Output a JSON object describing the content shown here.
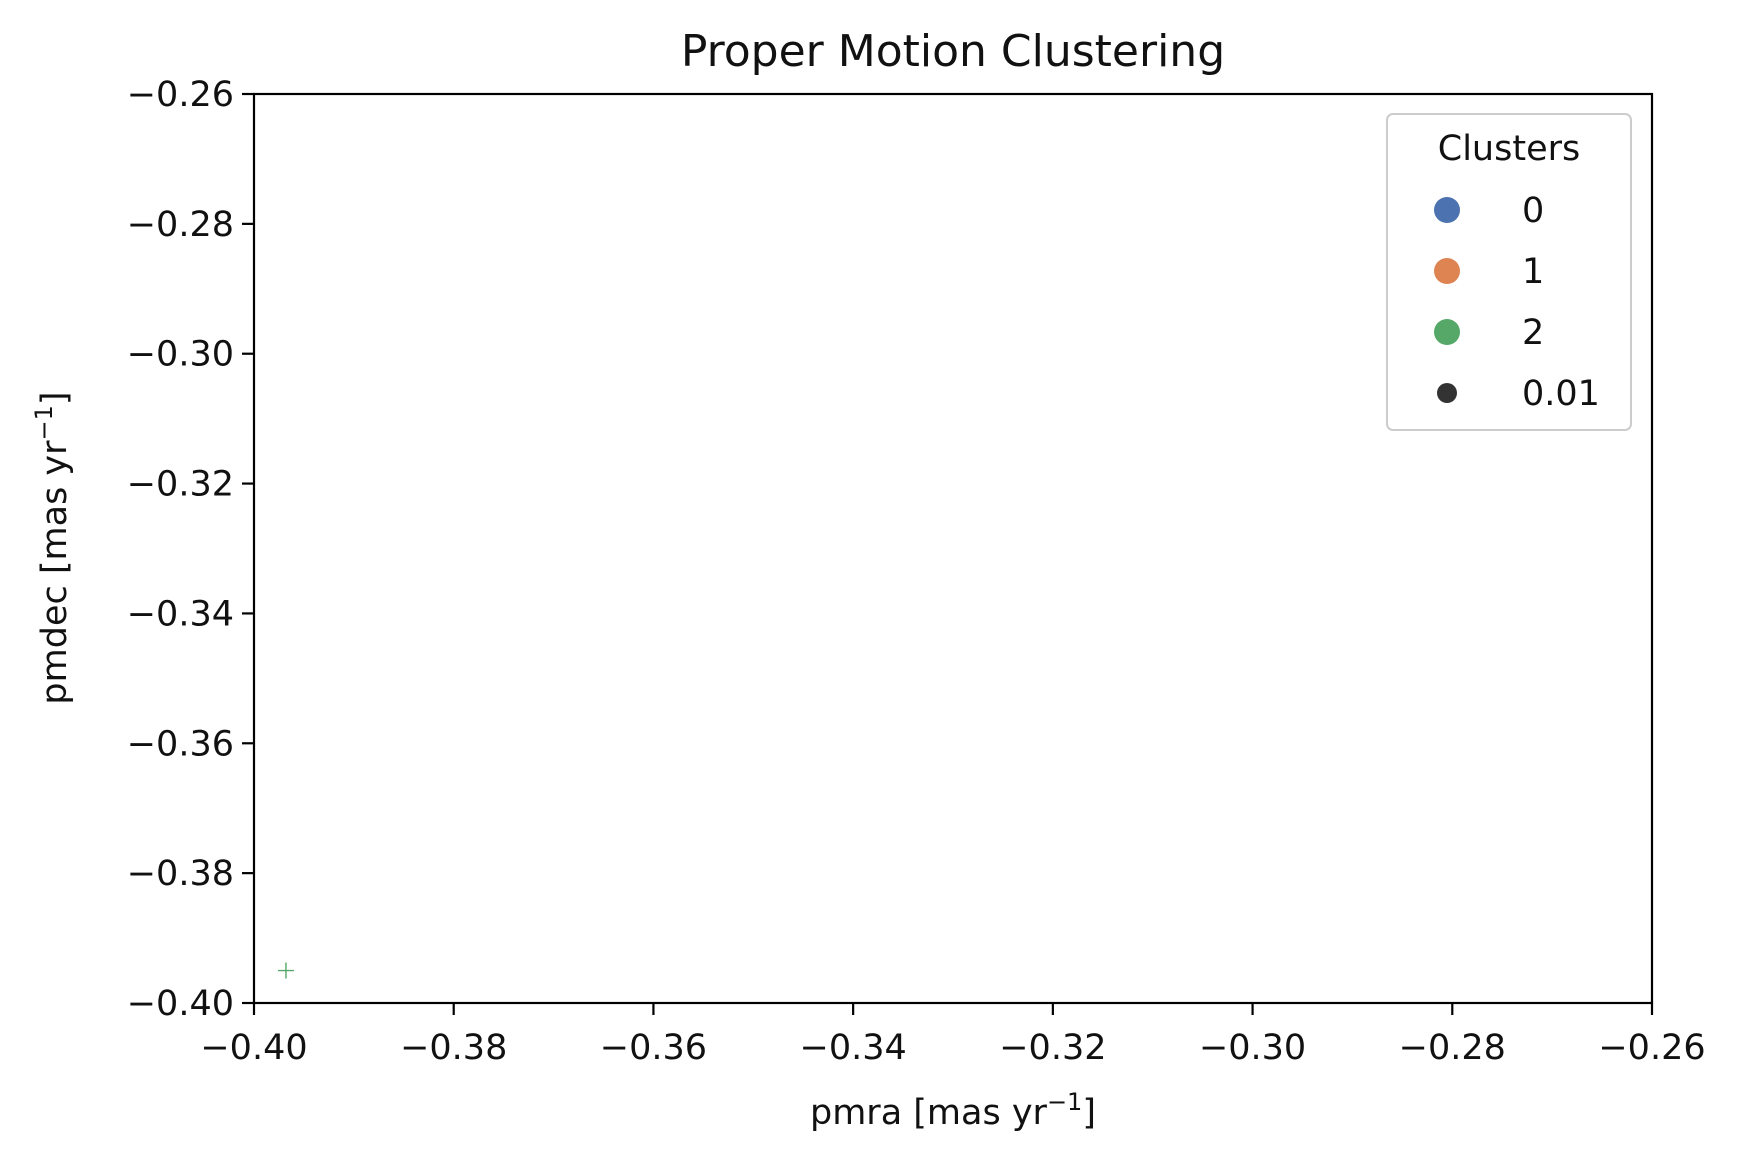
{
  "chart_data": {
    "type": "scatter",
    "title": "Proper Motion Clustering",
    "xlabel": {
      "prefix": "pmra [mas yr",
      "sup": "−1",
      "suffix": "]"
    },
    "ylabel": {
      "prefix": "pmdec [mas yr",
      "sup": "−1",
      "suffix": "]"
    },
    "xlim": [
      -0.4,
      -0.26
    ],
    "ylim": [
      -0.4,
      -0.26
    ],
    "x_ticks": [
      -0.4,
      -0.38,
      -0.36,
      -0.34,
      -0.32,
      -0.3,
      -0.28,
      -0.26
    ],
    "y_ticks": [
      -0.4,
      -0.38,
      -0.36,
      -0.34,
      -0.32,
      -0.3,
      -0.28,
      -0.26
    ],
    "x_tick_labels": [
      "−0.40",
      "−0.38",
      "−0.36",
      "−0.34",
      "−0.32",
      "−0.30",
      "−0.28",
      "−0.26"
    ],
    "y_tick_labels": [
      "−0.40",
      "−0.38",
      "−0.36",
      "−0.34",
      "−0.32",
      "−0.30",
      "−0.28",
      "−0.26"
    ],
    "grid": false,
    "legend": {
      "title": "Clusters",
      "placement": "top-right",
      "entries": [
        {
          "label": "0",
          "color": "#4c72b0",
          "kind": "hue"
        },
        {
          "label": "1",
          "color": "#dd8452",
          "kind": "hue"
        },
        {
          "label": "2",
          "color": "#55a868",
          "kind": "hue"
        },
        {
          "label": "0.01",
          "color": "#333333",
          "kind": "size"
        }
      ]
    },
    "points": [
      {
        "x": -0.3968,
        "y": -0.395,
        "cluster": "2",
        "marker": "plus",
        "color": "#55a868"
      }
    ]
  }
}
